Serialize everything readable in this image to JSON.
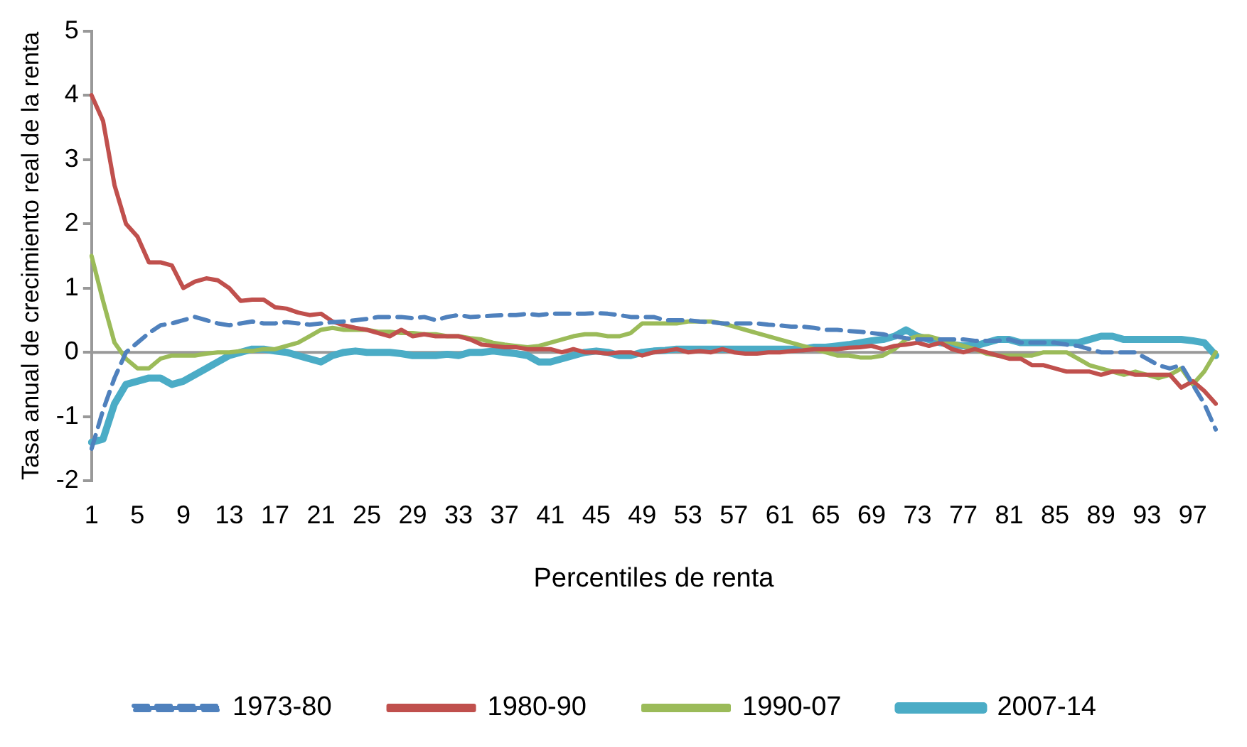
{
  "chart_data": {
    "type": "line",
    "xlabel": "Percentiles de renta",
    "ylabel": "Tasa anual de crecimiento real de la renta",
    "ylim": [
      -2,
      5
    ],
    "yticks": [
      -2,
      -1,
      0,
      1,
      2,
      3,
      4,
      5
    ],
    "grid": false,
    "legend": "bottom",
    "ref_lines": [
      {
        "axis": "y",
        "value": 0,
        "color": "#999999"
      }
    ],
    "marker": "none",
    "categories": [
      "1",
      null,
      null,
      null,
      "5",
      null,
      null,
      null,
      "9",
      null,
      null,
      null,
      "13",
      null,
      null,
      null,
      "17",
      null,
      null,
      null,
      "21",
      null,
      null,
      null,
      "25",
      null,
      null,
      null,
      "29",
      null,
      null,
      null,
      "33",
      null,
      null,
      null,
      "37",
      null,
      null,
      null,
      "41",
      null,
      null,
      null,
      "45",
      null,
      null,
      null,
      "49",
      null,
      null,
      null,
      "53",
      null,
      null,
      null,
      "57",
      null,
      null,
      null,
      "61",
      null,
      null,
      null,
      "65",
      null,
      null,
      null,
      "69",
      null,
      null,
      null,
      "73",
      null,
      null,
      null,
      "77",
      null,
      null,
      null,
      "81",
      null,
      null,
      null,
      "85",
      null,
      null,
      null,
      "89",
      null,
      null,
      null,
      "93",
      null,
      null,
      null,
      "97",
      null,
      null
    ],
    "series": [
      {
        "name": "1973-80",
        "color": "#4f81bd",
        "line_style": "dashed",
        "values": [
          -1.5,
          -0.9,
          -0.4,
          0.0,
          0.15,
          0.3,
          0.42,
          0.45,
          0.5,
          0.55,
          0.5,
          0.45,
          0.42,
          0.45,
          0.48,
          0.45,
          0.45,
          0.47,
          0.45,
          0.43,
          0.45,
          0.47,
          0.48,
          0.5,
          0.52,
          0.55,
          0.55,
          0.55,
          0.53,
          0.55,
          0.5,
          0.55,
          0.58,
          0.55,
          0.56,
          0.57,
          0.58,
          0.58,
          0.6,
          0.58,
          0.6,
          0.6,
          0.6,
          0.6,
          0.61,
          0.6,
          0.58,
          0.55,
          0.55,
          0.55,
          0.5,
          0.5,
          0.5,
          0.48,
          0.47,
          0.45,
          0.45,
          0.45,
          0.45,
          0.43,
          0.42,
          0.4,
          0.4,
          0.38,
          0.35,
          0.35,
          0.33,
          0.32,
          0.3,
          0.28,
          0.25,
          0.22,
          0.2,
          0.2,
          0.2,
          0.2,
          0.2,
          0.18,
          0.18,
          0.18,
          0.2,
          0.15,
          0.15,
          0.15,
          0.15,
          0.12,
          0.1,
          0.05,
          0.0,
          0.0,
          0.0,
          0.0,
          -0.1,
          -0.2,
          -0.25,
          -0.2,
          -0.5,
          -0.8,
          -1.2
        ]
      },
      {
        "name": "1980-90",
        "color": "#c0504d",
        "line_style": "solid",
        "values": [
          4.0,
          3.6,
          2.6,
          2.0,
          1.8,
          1.4,
          1.4,
          1.35,
          1.0,
          1.1,
          1.15,
          1.12,
          1.0,
          0.8,
          0.82,
          0.82,
          0.7,
          0.68,
          0.62,
          0.58,
          0.6,
          0.48,
          0.42,
          0.38,
          0.35,
          0.3,
          0.25,
          0.35,
          0.25,
          0.28,
          0.25,
          0.25,
          0.25,
          0.2,
          0.12,
          0.1,
          0.08,
          0.08,
          0.05,
          0.05,
          0.05,
          0.0,
          0.05,
          0.0,
          0.0,
          -0.02,
          0.0,
          0.0,
          -0.05,
          0.0,
          0.02,
          0.05,
          0.0,
          0.02,
          0.0,
          0.05,
          0.0,
          -0.02,
          -0.02,
          0.0,
          0.0,
          0.02,
          0.03,
          0.05,
          0.05,
          0.05,
          0.07,
          0.08,
          0.1,
          0.05,
          0.1,
          0.12,
          0.15,
          0.1,
          0.15,
          0.05,
          0.0,
          0.05,
          0.0,
          -0.05,
          -0.1,
          -0.1,
          -0.2,
          -0.2,
          -0.25,
          -0.3,
          -0.3,
          -0.3,
          -0.35,
          -0.3,
          -0.3,
          -0.35,
          -0.35,
          -0.35,
          -0.35,
          -0.55,
          -0.45,
          -0.6,
          -0.8
        ]
      },
      {
        "name": "1990-07",
        "color": "#9bbb59",
        "line_style": "solid",
        "values": [
          1.5,
          0.8,
          0.15,
          -0.1,
          -0.25,
          -0.25,
          -0.1,
          -0.05,
          -0.05,
          -0.05,
          -0.02,
          0.0,
          0.0,
          0.02,
          0.02,
          0.05,
          0.05,
          0.1,
          0.15,
          0.25,
          0.35,
          0.38,
          0.35,
          0.35,
          0.35,
          0.32,
          0.32,
          0.3,
          0.3,
          0.28,
          0.28,
          0.25,
          0.25,
          0.22,
          0.2,
          0.15,
          0.12,
          0.1,
          0.08,
          0.1,
          0.15,
          0.2,
          0.25,
          0.28,
          0.28,
          0.25,
          0.25,
          0.3,
          0.45,
          0.45,
          0.45,
          0.45,
          0.48,
          0.48,
          0.48,
          0.45,
          0.4,
          0.35,
          0.3,
          0.25,
          0.2,
          0.15,
          0.1,
          0.05,
          0.0,
          -0.05,
          -0.05,
          -0.08,
          -0.08,
          -0.05,
          0.05,
          0.2,
          0.25,
          0.25,
          0.2,
          0.15,
          0.1,
          0.05,
          -0.02,
          -0.05,
          -0.05,
          -0.05,
          -0.05,
          0.0,
          0.0,
          0.0,
          -0.1,
          -0.2,
          -0.25,
          -0.3,
          -0.35,
          -0.3,
          -0.35,
          -0.4,
          -0.35,
          -0.25,
          -0.5,
          -0.3,
          0.0
        ]
      },
      {
        "name": "2007-14",
        "color": "#4bacc6",
        "line_style": "solid",
        "values": [
          -1.4,
          -1.35,
          -0.8,
          -0.5,
          -0.45,
          -0.4,
          -0.4,
          -0.5,
          -0.45,
          -0.35,
          -0.25,
          -0.15,
          -0.05,
          0.0,
          0.05,
          0.05,
          0.02,
          0.0,
          -0.05,
          -0.1,
          -0.15,
          -0.05,
          0.0,
          0.02,
          0.0,
          0.0,
          0.0,
          -0.02,
          -0.05,
          -0.05,
          -0.05,
          -0.03,
          -0.05,
          0.0,
          0.0,
          0.02,
          0.0,
          -0.02,
          -0.05,
          -0.15,
          -0.15,
          -0.1,
          -0.05,
          0.0,
          0.02,
          0.0,
          -0.05,
          -0.05,
          0.0,
          0.02,
          0.03,
          0.05,
          0.05,
          0.05,
          0.05,
          0.05,
          0.05,
          0.05,
          0.05,
          0.05,
          0.05,
          0.05,
          0.05,
          0.08,
          0.08,
          0.1,
          0.12,
          0.15,
          0.18,
          0.2,
          0.25,
          0.35,
          0.25,
          0.2,
          0.15,
          0.12,
          0.1,
          0.1,
          0.15,
          0.2,
          0.2,
          0.15,
          0.15,
          0.15,
          0.15,
          0.15,
          0.15,
          0.2,
          0.25,
          0.25,
          0.2,
          0.2,
          0.2,
          0.2,
          0.2,
          0.2,
          0.18,
          0.15,
          -0.05
        ]
      }
    ]
  }
}
